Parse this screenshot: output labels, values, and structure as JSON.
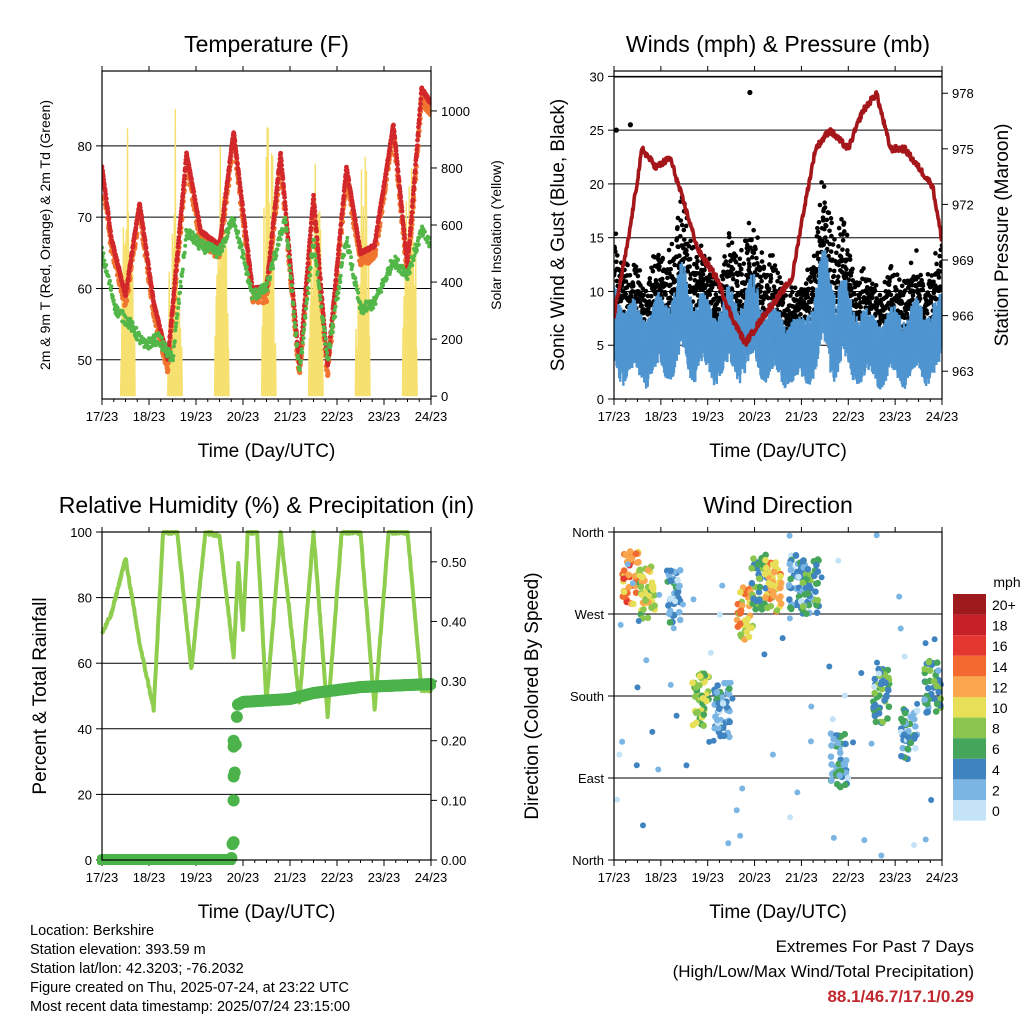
{
  "chart_data": [
    {
      "type": "line",
      "title": "Temperature (F)",
      "xlabel": "Time (Day/UTC)",
      "ylabel": "2m & 9m T (Red, Orange) & 2m Td (Green)",
      "y2label": "Solar Insolation (Yellow)",
      "xticks": [
        "17/23",
        "18/23",
        "19/23",
        "20/23",
        "21/23",
        "22/23",
        "23/23",
        "24/23"
      ],
      "yticks": [
        50,
        60,
        70,
        80
      ],
      "y2ticks": [
        0,
        200,
        400,
        600,
        800,
        1000
      ],
      "ylim": [
        44.5,
        90.5
      ],
      "y2lim": [
        -10,
        1140
      ],
      "grid": true,
      "colors": {
        "t2m": "#d2282b",
        "t9m": "#f07530",
        "td2m": "#52b748",
        "solar": "#f6e070"
      },
      "series": [
        {
          "name": "2m T",
          "x": [
            0,
            0.2,
            0.5,
            0.8,
            1.1,
            1.4,
            1.8,
            2.1,
            2.5,
            2.8,
            3.2,
            3.5,
            3.8,
            4.2,
            4.5,
            4.8,
            5.2,
            5.5,
            5.8,
            6.2,
            6.5,
            6.8,
            7.0
          ],
          "values": [
            77,
            67,
            59,
            72,
            58,
            50,
            79,
            68,
            66,
            82,
            60,
            60,
            79,
            49,
            73,
            49,
            77,
            65,
            66,
            83,
            63,
            88,
            86
          ]
        },
        {
          "name": "2m Td",
          "x": [
            0,
            0.3,
            0.6,
            0.9,
            1.2,
            1.5,
            1.8,
            2.1,
            2.5,
            2.8,
            3.2,
            3.5,
            3.9,
            4.2,
            4.5,
            4.8,
            5.2,
            5.5,
            5.8,
            6.2,
            6.5,
            6.8,
            7.0
          ],
          "values": [
            65,
            57,
            55,
            52,
            53,
            50,
            68,
            66,
            65,
            70,
            59,
            60,
            70,
            48,
            67,
            50,
            67,
            57,
            58,
            64,
            62,
            68,
            66
          ]
        },
        {
          "name": "Solar",
          "day_peaks": [
            940,
            1030,
            1050,
            940,
            1080,
            1030,
            1020,
            1100
          ]
        }
      ]
    },
    {
      "type": "scatter",
      "title": "Winds (mph) & Pressure (mb)",
      "xlabel": "Time (Day/UTC)",
      "ylabel": "Sonic Wind & Gust (Blue, Black)",
      "y2label": "Station Pressure (Maroon)",
      "xticks": [
        "17/23",
        "18/23",
        "19/23",
        "20/23",
        "21/23",
        "22/23",
        "23/23",
        "24/23"
      ],
      "yticks": [
        0,
        5,
        10,
        15,
        20,
        25,
        30
      ],
      "y2ticks": [
        963,
        966,
        969,
        972,
        975,
        978
      ],
      "ylim": [
        0,
        30.5
      ],
      "y2lim": [
        961.5,
        979.2
      ],
      "grid": true,
      "colors": {
        "wind": "#4f95d0",
        "gust": "#000000",
        "pressure": "#a5161b"
      },
      "series": [
        {
          "name": "Pressure",
          "x": [
            0,
            0.3,
            0.6,
            0.9,
            1.2,
            1.5,
            1.8,
            2.2,
            2.5,
            2.8,
            3.2,
            3.5,
            3.8,
            4.0,
            4.3,
            4.6,
            5.0,
            5.3,
            5.6,
            5.9,
            6.2,
            6.5,
            6.8,
            7.0
          ],
          "values": [
            966,
            970,
            975,
            974,
            974.5,
            972,
            969.5,
            968,
            966,
            964.5,
            966,
            967,
            968,
            971,
            975,
            976,
            975,
            977,
            978,
            975,
            975,
            974,
            973,
            970
          ]
        },
        {
          "name": "Wind",
          "activity": [
            0.7,
            0.45,
            0.55,
            0.8,
            0.5,
            0.6,
            0.7,
            0.45,
            0.35,
            0.95,
            0.6,
            0.4,
            0.45,
            0.5,
            0.55
          ]
        },
        {
          "name": "Gust",
          "outliers": [
            {
              "x": 0.05,
              "y": 25
            },
            {
              "x": 0.35,
              "y": 25.5
            },
            {
              "x": 2.9,
              "y": 28.5
            }
          ]
        }
      ]
    },
    {
      "type": "line",
      "title": "Relative Humidity (%) & Precipitation (in)",
      "xlabel": "Time (Day/UTC)",
      "ylabel": "Percent & Total Rainfall",
      "xticks": [
        "17/23",
        "18/23",
        "19/23",
        "20/23",
        "21/23",
        "22/23",
        "23/23",
        "24/23"
      ],
      "yticks": [
        0,
        20,
        40,
        60,
        80,
        100
      ],
      "y2ticks": [
        "0.00",
        "0.10",
        "0.20",
        "0.30",
        "0.40",
        "0.50"
      ],
      "ylim": [
        0,
        100
      ],
      "y2lim": [
        0,
        0.55
      ],
      "grid": true,
      "colors": {
        "rh": "#8fcd4e",
        "precip": "#4bb34a"
      },
      "series": [
        {
          "name": "RH",
          "x": [
            0,
            0.2,
            0.5,
            0.8,
            1.1,
            1.3,
            1.6,
            1.9,
            2.2,
            2.5,
            2.8,
            2.9,
            3.0,
            3.1,
            3.3,
            3.5,
            3.8,
            4.2,
            4.5,
            4.8,
            5.1,
            5.5,
            5.8,
            6.1,
            6.5,
            6.8,
            7.0
          ],
          "values": [
            69,
            75,
            92,
            66,
            46,
            100,
            100,
            58,
            100,
            99,
            62,
            90,
            70,
            100,
            100,
            48,
            100,
            48,
            100,
            44,
            100,
            100,
            46,
            100,
            100,
            52,
            52
          ]
        },
        {
          "name": "Total Rainfall",
          "x": [
            0,
            2.75,
            2.78,
            2.8,
            2.85,
            2.88,
            3.0,
            4.0,
            4.5,
            5.5,
            7.0
          ],
          "values": [
            0,
            0,
            0.03,
            0.1,
            0.2,
            0.26,
            0.265,
            0.27,
            0.28,
            0.29,
            0.295
          ]
        }
      ]
    },
    {
      "type": "scatter",
      "title": "Wind Direction",
      "xlabel": "Time (Day/UTC)",
      "ylabel": "Direction (Colored By Speed)",
      "xticks": [
        "17/23",
        "18/23",
        "19/23",
        "20/23",
        "21/23",
        "22/23",
        "23/23",
        "24/23"
      ],
      "yticks": [
        "North",
        "West",
        "South",
        "East",
        "North"
      ],
      "ylim": [
        0,
        360
      ],
      "grid": true,
      "legend": {
        "title": "mph",
        "labels": [
          "20+",
          "18",
          "16",
          "14",
          "12",
          "10",
          "8",
          "6",
          "4",
          "2",
          "0"
        ],
        "colors": [
          "#9e1a1c",
          "#c62128",
          "#e3372f",
          "#f26a2f",
          "#f9a64e",
          "#e6df57",
          "#8ac64d",
          "#45a55b",
          "#3f83c0",
          "#7ab5e3",
          "#c5e3f6"
        ],
        "placement": "right"
      },
      "clusters": [
        {
          "x": 0.35,
          "dir": 310,
          "speed": 13
        },
        {
          "x": 0.7,
          "dir": 295,
          "speed": 9
        },
        {
          "x": 1.3,
          "dir": 290,
          "speed": 3
        },
        {
          "x": 1.85,
          "dir": 175,
          "speed": 8
        },
        {
          "x": 2.3,
          "dir": 165,
          "speed": 3
        },
        {
          "x": 2.8,
          "dir": 270,
          "speed": 11
        },
        {
          "x": 3.1,
          "dir": 305,
          "speed": 6
        },
        {
          "x": 3.4,
          "dir": 300,
          "speed": 11
        },
        {
          "x": 3.9,
          "dir": 305,
          "speed": 3
        },
        {
          "x": 4.2,
          "dir": 300,
          "speed": 5
        },
        {
          "x": 4.8,
          "dir": 110,
          "speed": 4
        },
        {
          "x": 5.7,
          "dir": 180,
          "speed": 6
        },
        {
          "x": 6.3,
          "dir": 140,
          "speed": 3
        },
        {
          "x": 6.8,
          "dir": 190,
          "speed": 5
        }
      ]
    }
  ],
  "info": {
    "location": "Location: Berkshire",
    "elevation": "Station elevation: 393.59 m",
    "latlon": "Station lat/lon: 42.3203; -76.2032",
    "created": "Figure created on Thu, 2025-07-24, at 23:22 UTC",
    "recent": "Most recent data timestamp: 2025/07/24 23:15:00"
  },
  "extremes": {
    "title": "Extremes For Past 7 Days",
    "subtitle": "(High/Low/Max Wind/Total Precipitation)",
    "values": "88.1/46.7/17.1/0.29"
  }
}
